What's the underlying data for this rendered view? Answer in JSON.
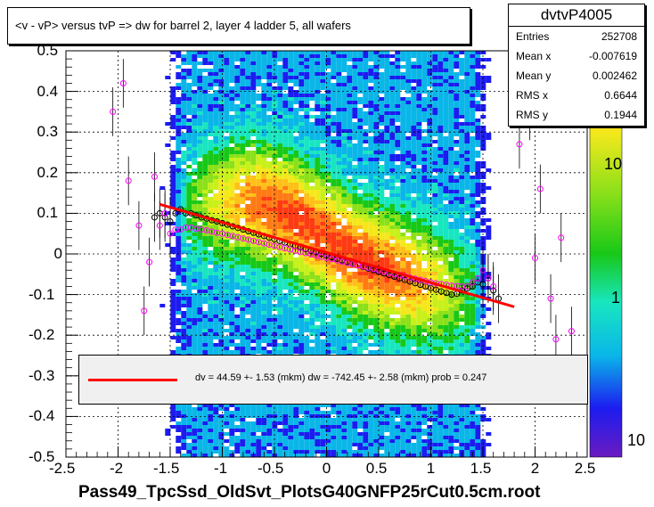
{
  "title": "<v - vP>       versus  tvP =>  dw for barrel 2, layer 4 ladder 5, all wafers",
  "stats": {
    "name": "dvtvP4005",
    "rows": [
      {
        "label": "Entries",
        "value": "252708"
      },
      {
        "label": "Mean x",
        "value": "-0.007619"
      },
      {
        "label": "Mean y",
        "value": "0.002462"
      },
      {
        "label": "RMS x",
        "value": "0.6644"
      },
      {
        "label": "RMS y",
        "value": "0.1944"
      }
    ]
  },
  "legend": {
    "text": "dv =   44.59 +-  1.53 (mkm) dw = -742.45 +-  2.58 (mkm) prob = 0.247",
    "color": "#ff0000"
  },
  "xlabel": "Pass49_TpcSsd_OldSvt_PlotsG40GNFP25rCut0.5cm.root",
  "palette_ticks": [
    "10",
    "1",
    "10"
  ],
  "chart_data": {
    "type": "heatmap",
    "xlim": [
      -2.5,
      2.5
    ],
    "ylim": [
      -0.5,
      0.5
    ],
    "x_ticks": [
      "-2.5",
      "-2",
      "-1.5",
      "-1",
      "-0.5",
      "0",
      "0.5",
      "1",
      "1.5",
      "2",
      "2.5"
    ],
    "y_ticks": [
      "-0.5",
      "-0.4",
      "-0.3",
      "-0.2",
      "-0.1",
      "0",
      "0.1",
      "0.2",
      "0.3",
      "0.4",
      "0.5"
    ],
    "grid": true,
    "palette_scale": "log",
    "fit_line": {
      "x": [
        -1.6,
        1.8
      ],
      "y": [
        0.122,
        -0.13
      ],
      "color": "#ff0000"
    },
    "mean_profile_black": {
      "x": [
        -1.65,
        -1.6,
        -1.55,
        -1.5,
        -1.45,
        -1.4,
        -1.35,
        -1.3,
        -1.25,
        -1.2,
        -1.15,
        -1.1,
        -1.05,
        -1.0,
        -0.95,
        -0.9,
        -0.85,
        -0.8,
        -0.75,
        -0.7,
        -0.65,
        -0.6,
        -0.55,
        -0.5,
        -0.45,
        -0.4,
        -0.35,
        -0.3,
        -0.25,
        -0.2,
        -0.15,
        -0.1,
        -0.05,
        0.0,
        0.05,
        0.1,
        0.15,
        0.2,
        0.25,
        0.3,
        0.35,
        0.4,
        0.45,
        0.5,
        0.55,
        0.6,
        0.65,
        0.7,
        0.75,
        0.8,
        0.85,
        0.9,
        0.95,
        1.0,
        1.05,
        1.1,
        1.15,
        1.2,
        1.25,
        1.3,
        1.35,
        1.4,
        1.45,
        1.5,
        1.55,
        1.6,
        1.65
      ],
      "y": [
        0.09,
        0.1,
        0.09,
        0.08,
        0.1,
        0.11,
        0.1,
        0.1,
        0.095,
        0.09,
        0.087,
        0.083,
        0.08,
        0.076,
        0.072,
        0.068,
        0.064,
        0.06,
        0.056,
        0.052,
        0.048,
        0.044,
        0.04,
        0.036,
        0.032,
        0.028,
        0.024,
        0.02,
        0.016,
        0.012,
        0.008,
        0.004,
        0.0,
        -0.004,
        -0.008,
        -0.012,
        -0.016,
        -0.02,
        -0.024,
        -0.028,
        -0.032,
        -0.036,
        -0.04,
        -0.044,
        -0.048,
        -0.052,
        -0.056,
        -0.06,
        -0.064,
        -0.068,
        -0.072,
        -0.076,
        -0.08,
        -0.084,
        -0.088,
        -0.092,
        -0.096,
        -0.1,
        -0.098,
        -0.09,
        -0.085,
        -0.08,
        -0.07,
        -0.075,
        -0.06,
        -0.09,
        -0.11
      ]
    },
    "mean_profile_magenta": {
      "x": [
        -2.05,
        -1.95,
        -1.9,
        -1.8,
        -1.75,
        -1.7,
        -1.65,
        -1.6,
        -1.55,
        -1.5,
        -1.45,
        -1.4,
        -1.35,
        -1.3,
        -1.25,
        -1.2,
        -1.15,
        -1.1,
        -1.05,
        -1.0,
        -0.95,
        -0.9,
        -0.85,
        -0.8,
        -0.75,
        -0.7,
        -0.65,
        -0.6,
        -0.55,
        -0.5,
        -0.45,
        -0.4,
        -0.35,
        -0.3,
        -0.25,
        -0.2,
        -0.15,
        -0.1,
        -0.05,
        0.0,
        0.05,
        0.1,
        0.15,
        0.2,
        0.25,
        0.3,
        0.35,
        0.4,
        0.45,
        0.5,
        0.55,
        0.6,
        0.65,
        0.7,
        0.75,
        0.8,
        0.85,
        0.9,
        0.95,
        1.0,
        1.05,
        1.1,
        1.15,
        1.2,
        1.25,
        1.3,
        1.35,
        1.4,
        1.45,
        1.5,
        1.55,
        1.6,
        1.85,
        1.95,
        2.0,
        2.05,
        2.15,
        2.2,
        2.25,
        2.35
      ],
      "y": [
        0.35,
        0.42,
        0.18,
        0.07,
        -0.14,
        -0.02,
        0.19,
        0.07,
        0.1,
        0.05,
        0.06,
        0.06,
        0.065,
        0.065,
        0.062,
        0.06,
        0.058,
        0.055,
        0.052,
        0.05,
        0.047,
        0.044,
        0.041,
        0.038,
        0.035,
        0.032,
        0.029,
        0.026,
        0.023,
        0.02,
        0.017,
        0.014,
        0.011,
        0.008,
        0.005,
        0.002,
        -0.001,
        -0.004,
        -0.007,
        -0.01,
        -0.013,
        -0.016,
        -0.019,
        -0.022,
        -0.025,
        -0.028,
        -0.031,
        -0.034,
        -0.037,
        -0.04,
        -0.043,
        -0.046,
        -0.049,
        -0.052,
        -0.055,
        -0.058,
        -0.061,
        -0.064,
        -0.067,
        -0.07,
        -0.072,
        -0.074,
        -0.076,
        -0.078,
        -0.079,
        -0.08,
        -0.08,
        -0.07,
        -0.06,
        -0.04,
        -0.06,
        -0.08,
        0.27,
        0.34,
        -0.01,
        0.16,
        -0.11,
        -0.21,
        0.04,
        -0.19
      ]
    }
  },
  "colors": {
    "frame": "#000000",
    "grid": "#000000",
    "fit": "#ff0000",
    "profile_black": "#000000",
    "profile_magenta": "#ff00ff"
  }
}
